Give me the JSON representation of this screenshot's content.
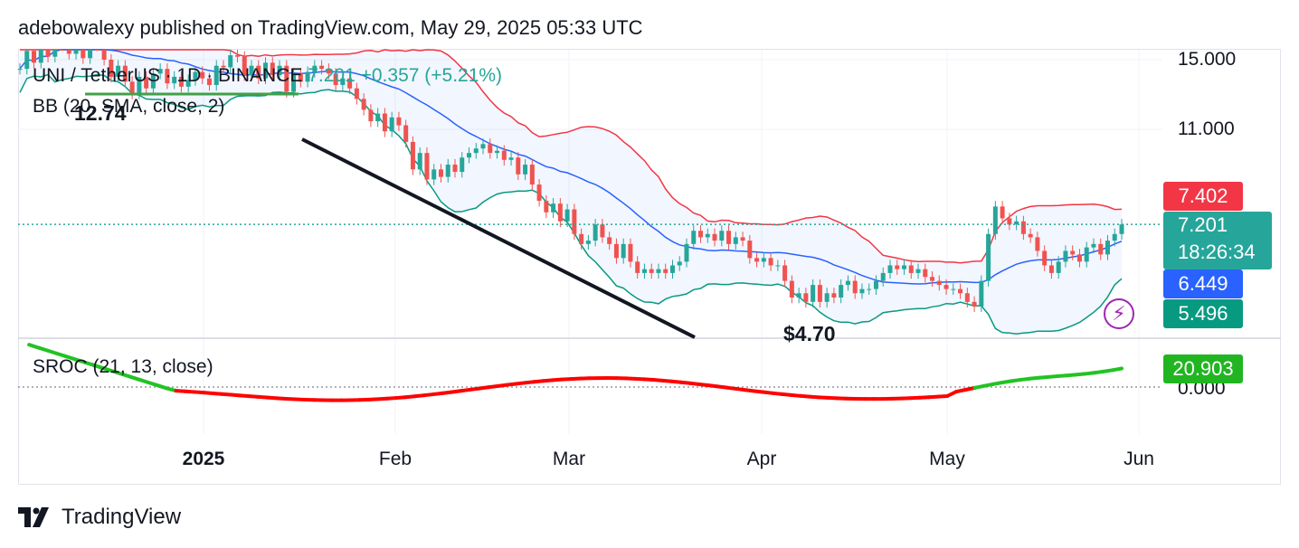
{
  "header": {
    "published": "adebowalexy published on TradingView.com, May 29, 2025 05:33 UTC"
  },
  "legend": {
    "symbol": "UNI / TetherUS · 1D · BINANCE",
    "price": "7.201",
    "change": "+0.357 (+5.21%)",
    "bb": "BB (20, SMA, close, 2)",
    "sroc": "SROC (21, 13, close)"
  },
  "price_tags": {
    "upper": "7.402",
    "last": "7.201",
    "countdown": "18:26:34",
    "basis": "6.449",
    "lower": "5.496",
    "sroc": "20.903"
  },
  "annotations": {
    "high": "12.74",
    "low": "$4.70"
  },
  "footer": {
    "brand": "TradingView"
  },
  "colors": {
    "up": "#26a69a",
    "down": "#ef5350",
    "upper_band": "#f23645",
    "basis": "#2962ff",
    "lower_band": "#089981",
    "sroc_up": "#22c322",
    "sroc_down": "#ff0000",
    "bb_fill": "#2962ff",
    "trendline": "#131722"
  },
  "chart_data": [
    {
      "type": "candlestick",
      "title": "UNI / TetherUS · 1D · BINANCE",
      "y_axis_labels": [
        "15.000",
        "11.000"
      ],
      "x_labels": [
        "2025",
        "Feb",
        "Mar",
        "Apr",
        "May",
        "Jun"
      ],
      "x_label_dates": [
        "2025-01-01",
        "2025-02-01",
        "2025-03-01",
        "2025-04-01",
        "2025-05-01",
        "2025-06-01"
      ],
      "x_range": [
        "2024-12-02",
        "2025-06-02"
      ],
      "y_scale": "log",
      "start_date": "2024-12-02",
      "closes": [
        14.4,
        15.6,
        14.8,
        16.1,
        15.2,
        17.5,
        16.8,
        15.4,
        16.0,
        15.1,
        17.1,
        16.2,
        15.0,
        13.9,
        14.6,
        13.6,
        12.9,
        13.9,
        13.2,
        14.1,
        14.4,
        13.5,
        13.9,
        13.3,
        13.7,
        14.2,
        13.8,
        13.4,
        14.6,
        14.5,
        15.3,
        15.2,
        14.0,
        14.6,
        13.8,
        14.8,
        14.0,
        14.6,
        13.0,
        14.1,
        13.6,
        14.2,
        14.6,
        14.4,
        14.1,
        13.4,
        13.8,
        13.2,
        12.6,
        12.0,
        11.4,
        11.8,
        10.9,
        11.6,
        11.2,
        10.4,
        9.2,
        9.9,
        8.8,
        9.2,
        8.9,
        9.4,
        9.1,
        9.7,
        9.9,
        10.1,
        10.3,
        9.9,
        10.0,
        9.6,
        9.7,
        9.0,
        9.4,
        8.6,
        8.0,
        7.6,
        7.9,
        7.3,
        7.7,
        6.9,
        6.6,
        6.7,
        7.2,
        6.8,
        6.6,
        6.2,
        6.6,
        6.1,
        5.8,
        5.9,
        5.8,
        5.9,
        5.8,
        6.0,
        6.1,
        6.6,
        7.0,
        6.8,
        6.9,
        6.7,
        7.0,
        6.6,
        6.8,
        6.7,
        6.2,
        6.1,
        6.2,
        6.0,
        6.0,
        5.6,
        5.2,
        5.3,
        5.1,
        5.5,
        5.1,
        5.3,
        5.2,
        5.5,
        5.6,
        5.3,
        5.4,
        5.4,
        5.6,
        5.8,
        6.0,
        5.9,
        6.0,
        5.8,
        5.9,
        5.7,
        5.6,
        5.5,
        5.4,
        5.4,
        5.3,
        5.1,
        5.0,
        5.6,
        6.9,
        7.8,
        7.4,
        7.2,
        7.3,
        6.9,
        6.8,
        6.4,
        6.0,
        5.8,
        6.1,
        6.4,
        6.3,
        6.1,
        6.5,
        6.6,
        6.3,
        6.7,
        6.9,
        7.2
      ]
    },
    {
      "type": "line",
      "title": "SROC (21, 13, close)",
      "y_axis_labels": [
        "0.000"
      ],
      "last_value": 20.903
    }
  ]
}
